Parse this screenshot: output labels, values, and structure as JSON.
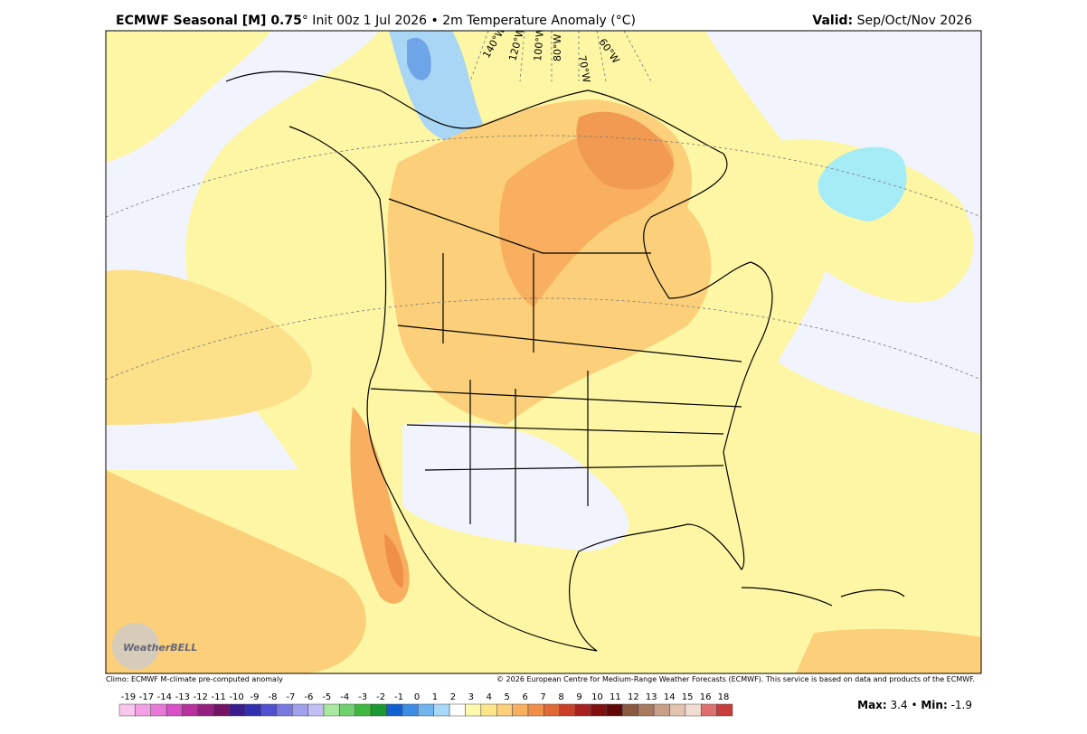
{
  "header": {
    "title_bold": "ECMWF Seasonal [M] 0.75",
    "title_rest": "° Init 00z 1 Jul 2026 • 2m Temperature Anomaly (°C)",
    "valid_label": "Valid:",
    "valid_value": "Sep/Oct/Nov 2026"
  },
  "map": {
    "meridians": [
      "140°W",
      "120°W",
      "100°W",
      "80°W",
      "70°W",
      "60°W"
    ],
    "logo": "WeatherBELL"
  },
  "footer": {
    "climo": "Climo: ECMWF M-climate pre-computed anomaly",
    "copyright": "© 2026 European Centre for Medium-Range Weather Forecasts (ECMWF). This service is based on data and products of the ECMWF."
  },
  "colorbar": {
    "labels": [
      -19,
      -17,
      -14,
      -13,
      -12,
      -11,
      -10,
      -9,
      -8,
      -7,
      -6,
      -5,
      -4,
      -3,
      -2,
      -1,
      0,
      1,
      2,
      3,
      4,
      5,
      6,
      7,
      8,
      9,
      10,
      11,
      12,
      13,
      14,
      15,
      16,
      18
    ],
    "colors": [
      "#f9c6ee",
      "#f2a0e4",
      "#e878d8",
      "#d850c6",
      "#b8309e",
      "#962080",
      "#741464",
      "#3a1c8e",
      "#3030b0",
      "#5050d0",
      "#7878e0",
      "#a0a0ec",
      "#c0c0f4",
      "#a8e8a0",
      "#70d070",
      "#40b840",
      "#1a9a30",
      "#1060d0",
      "#3c8ce6",
      "#70b4f0",
      "#a8d8f8",
      "#ffffff",
      "#fdfaae",
      "#fde68a",
      "#fcd07a",
      "#f8b060",
      "#f09048",
      "#e06a34",
      "#c84028",
      "#a82020",
      "#801010",
      "#600808",
      "#8a5a40",
      "#a87a60",
      "#c8a088",
      "#e0c4b0",
      "#f0dcd0",
      "#e07070",
      "#c83c3c"
    ]
  },
  "stats": {
    "max_label": "Max:",
    "max_value": "3.4",
    "min_label": "Min:",
    "min_value": "-1.9"
  }
}
